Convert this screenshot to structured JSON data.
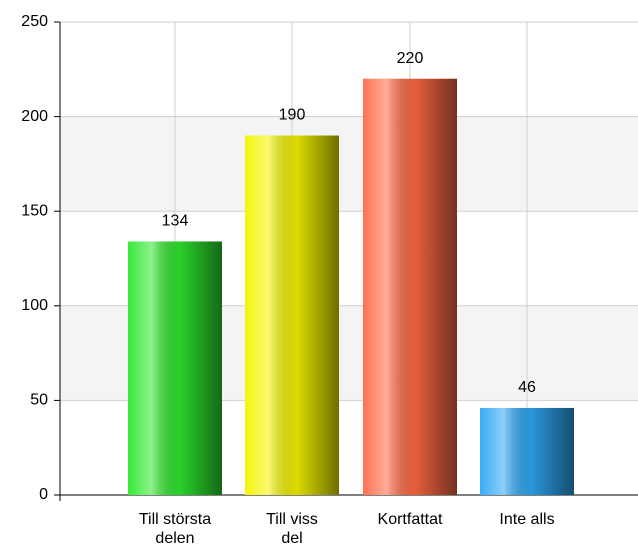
{
  "chart_data": {
    "type": "bar",
    "categories": [
      "Till största delen",
      "Till viss del",
      "Kortfattat",
      "Inte alls"
    ],
    "values": [
      134,
      190,
      220,
      46
    ],
    "colors": [
      "#2ee82e",
      "#f4f400",
      "#ff6a45",
      "#2ea8f4"
    ],
    "ylim": [
      0,
      250
    ],
    "yticks": [
      0,
      50,
      100,
      150,
      200,
      250
    ],
    "grid": true
  }
}
